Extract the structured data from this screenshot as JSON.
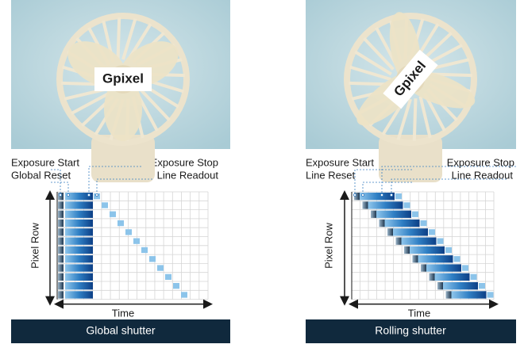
{
  "panels": [
    {
      "logo": "Gpixel",
      "exposure_start": "Exposure Start",
      "reset": "Global Reset",
      "exposure_stop": "Exposure Stop",
      "readout": "Line Readout",
      "y_label": "Pixel Row",
      "x_label": "Time",
      "caption": "Global shutter"
    },
    {
      "logo": "Gpixel",
      "exposure_start": "Exposure Start",
      "reset": "Line Reset",
      "exposure_stop": "Exposure Stop",
      "readout": "Line Readout",
      "y_label": "Pixel Row",
      "x_label": "Time",
      "caption": "Rolling shutter"
    }
  ]
}
